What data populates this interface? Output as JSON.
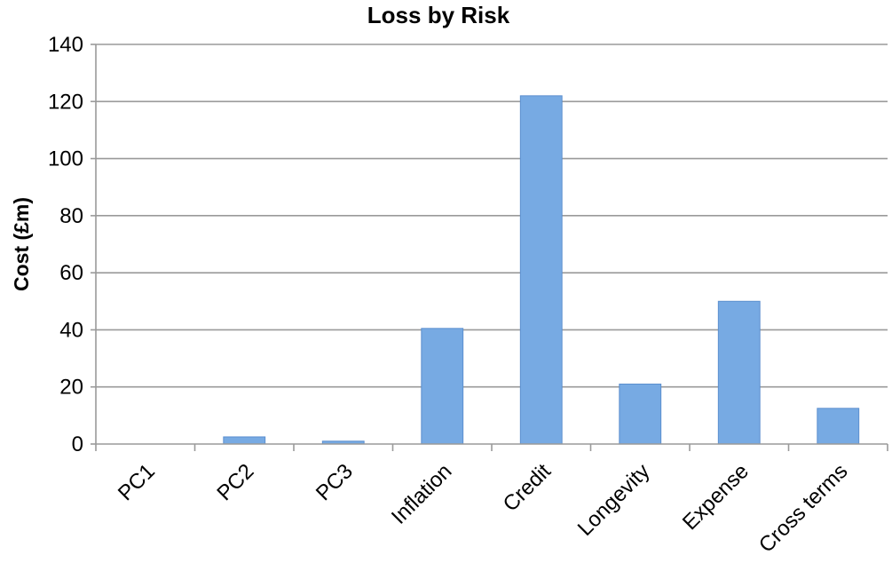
{
  "chart_data": {
    "type": "bar",
    "title": "Loss by Risk",
    "xlabel": "",
    "ylabel": "Cost (£m)",
    "categories": [
      "PC1",
      "PC2",
      "PC3",
      "Inflation",
      "Credit",
      "Longevity",
      "Expense",
      "Cross terms"
    ],
    "values": [
      0,
      2.5,
      1,
      40.5,
      122,
      21,
      50,
      12.5
    ],
    "ylim": [
      0,
      140
    ],
    "yticks": [
      0,
      20,
      40,
      60,
      80,
      100,
      120,
      140
    ],
    "grid": true,
    "legend": "none",
    "bar_color": "#77aae3"
  }
}
